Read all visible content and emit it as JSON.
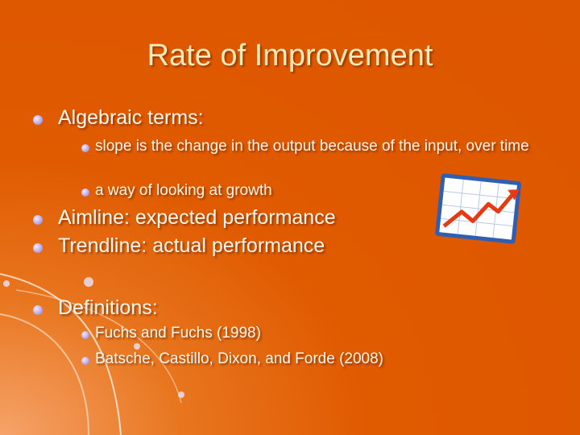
{
  "title": "Rate of Improvement",
  "bullets": [
    {
      "text": "Algebraic terms:",
      "items": [
        "slope is the change in the output because of the input, over time",
        "a way of looking at growth"
      ]
    },
    {
      "text": "Aimline: expected performance"
    },
    {
      "text": "Trendline: actual performance"
    },
    {
      "text": "Definitions:",
      "items": [
        "Fuchs and Fuchs (1998)",
        "Batsche, Castillo, Dixon, and Forde (2008)"
      ]
    }
  ]
}
